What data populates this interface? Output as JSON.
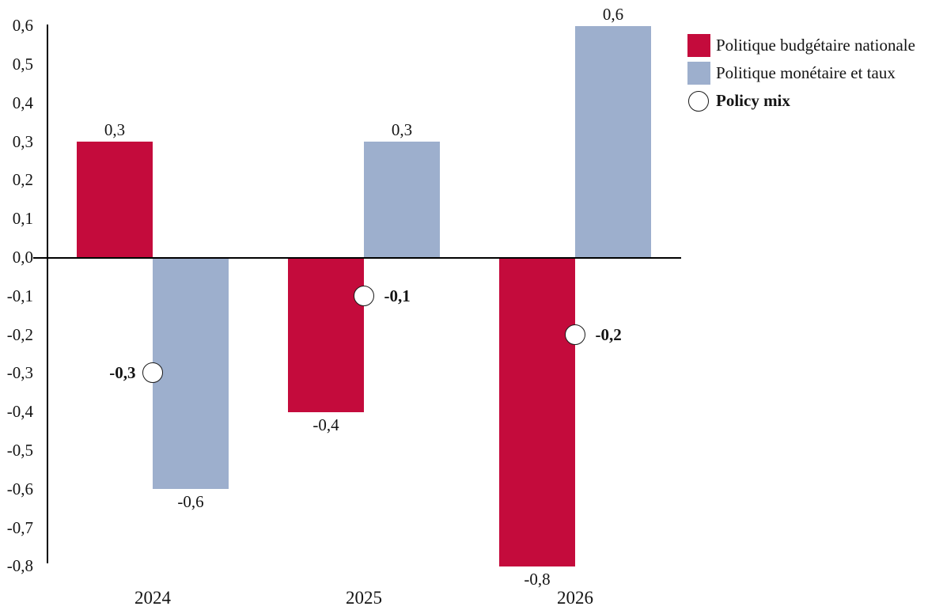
{
  "chart_data": {
    "type": "bar",
    "title": "",
    "xlabel": "",
    "ylabel": "",
    "categories": [
      "2024",
      "2025",
      "2026"
    ],
    "series": [
      {
        "name": "Politique budgétaire nationale",
        "color": "#C40B3C",
        "values": [
          0.3,
          -0.4,
          -0.8
        ],
        "value_labels": [
          "0,3",
          "-0,4",
          "-0,8"
        ]
      },
      {
        "name": "Politique monétaire et taux",
        "color": "#9DAFCD",
        "values": [
          -0.6,
          0.3,
          0.6
        ],
        "value_labels": [
          "-0,6",
          "0,3",
          "0,6"
        ]
      }
    ],
    "policy_mix": {
      "name": "Policy mix",
      "marker": "white-circle",
      "values": [
        -0.3,
        -0.1,
        -0.2
      ],
      "value_labels": [
        "-0,3",
        "-0,1",
        "-0,2"
      ],
      "label_side": [
        "left",
        "right",
        "right"
      ]
    },
    "y_ticks": [
      "0,6",
      "0,5",
      "0,4",
      "0,3",
      "0,2",
      "0,1",
      "0,0",
      "-0,1",
      "-0,2",
      "-0,3",
      "-0,4",
      "-0,5",
      "-0,6",
      "-0,7",
      "-0,8"
    ],
    "ylim": [
      -0.8,
      0.6
    ],
    "grid": false,
    "legend_position": "top-right"
  },
  "legend": {
    "items": [
      {
        "label": "Politique budgétaire nationale",
        "marker": "square",
        "color": "#C40B3C",
        "bold": false
      },
      {
        "label": "Politique monétaire et taux",
        "marker": "square",
        "color": "#9DAFCD",
        "bold": false
      },
      {
        "label": "Policy mix",
        "marker": "circle",
        "color": "#FFFFFF",
        "bold": true
      }
    ]
  }
}
